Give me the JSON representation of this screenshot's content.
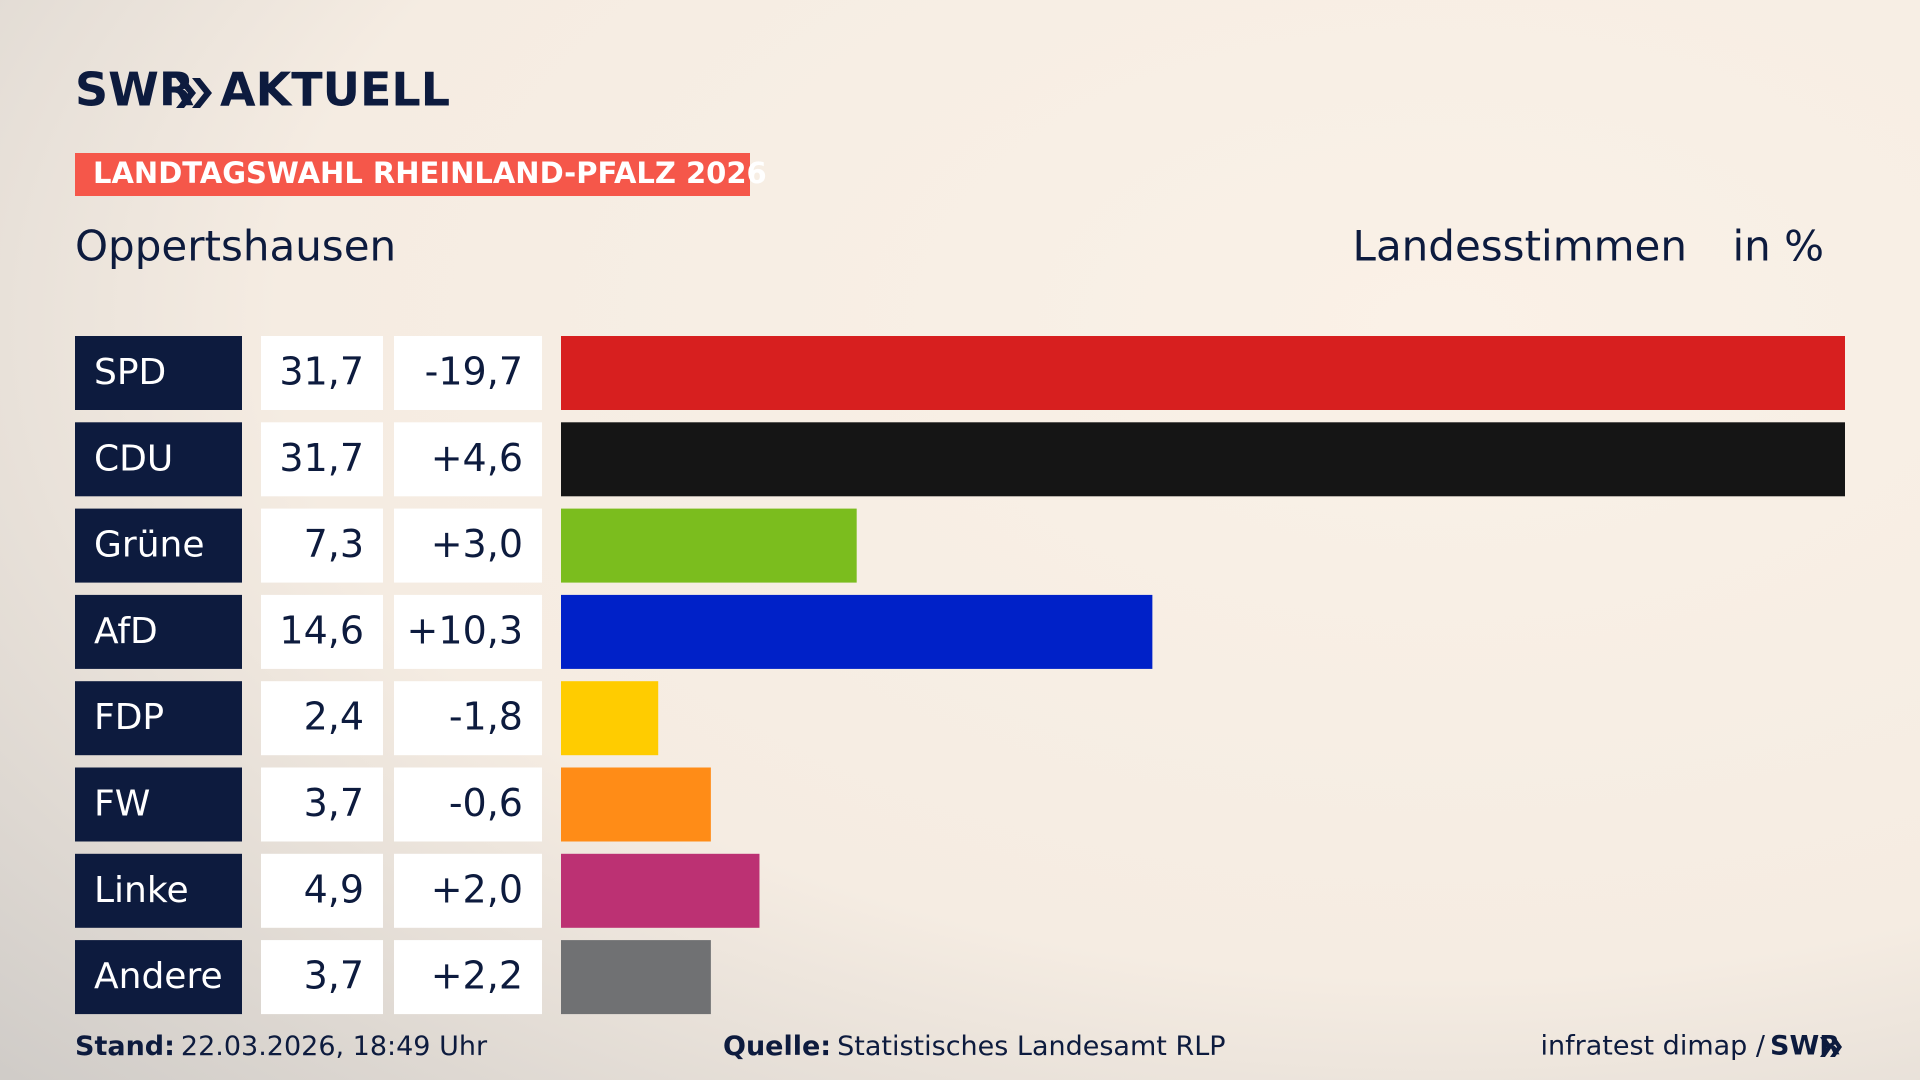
{
  "brand": "SWR",
  "brand_product": "AKTUELL",
  "chart_data": {
    "type": "bar",
    "kicker": "LANDTAGSWAHL RHEINLAND-PFALZ 2026",
    "title": "Oppertshausen",
    "measure": "Landesstimmen",
    "unit": "in %",
    "categories": [
      "SPD",
      "CDU",
      "Grüne",
      "AfD",
      "FDP",
      "FW",
      "Linke",
      "Andere"
    ],
    "values": [
      31.7,
      31.7,
      7.3,
      14.6,
      2.4,
      3.7,
      4.9,
      3.7
    ],
    "value_labels": [
      "31,7",
      "31,7",
      "7,3",
      "14,6",
      "2,4",
      "3,7",
      "4,9",
      "3,7"
    ],
    "changes": [
      -19.7,
      4.6,
      3.0,
      10.3,
      -1.8,
      -0.6,
      2.0,
      2.2
    ],
    "change_labels": [
      "-19,7",
      "+4,6",
      "+3,0",
      "+10,3",
      "-1,8",
      "-0,6",
      "+2,0",
      "+2,2"
    ],
    "colors": [
      "#d71f1f",
      "#151515",
      "#7bbd1e",
      "#0021c8",
      "#ffcc00",
      "#ff8c17",
      "#bc3173",
      "#707173"
    ]
  },
  "footer": {
    "date_label": "Stand:",
    "date": "22.03.2026, 18:49 Uhr",
    "source_label": "Quelle:",
    "source": "Statistisches Landesamt RLP",
    "credit": "infratest dimap /",
    "credit_brand": "SWR"
  }
}
